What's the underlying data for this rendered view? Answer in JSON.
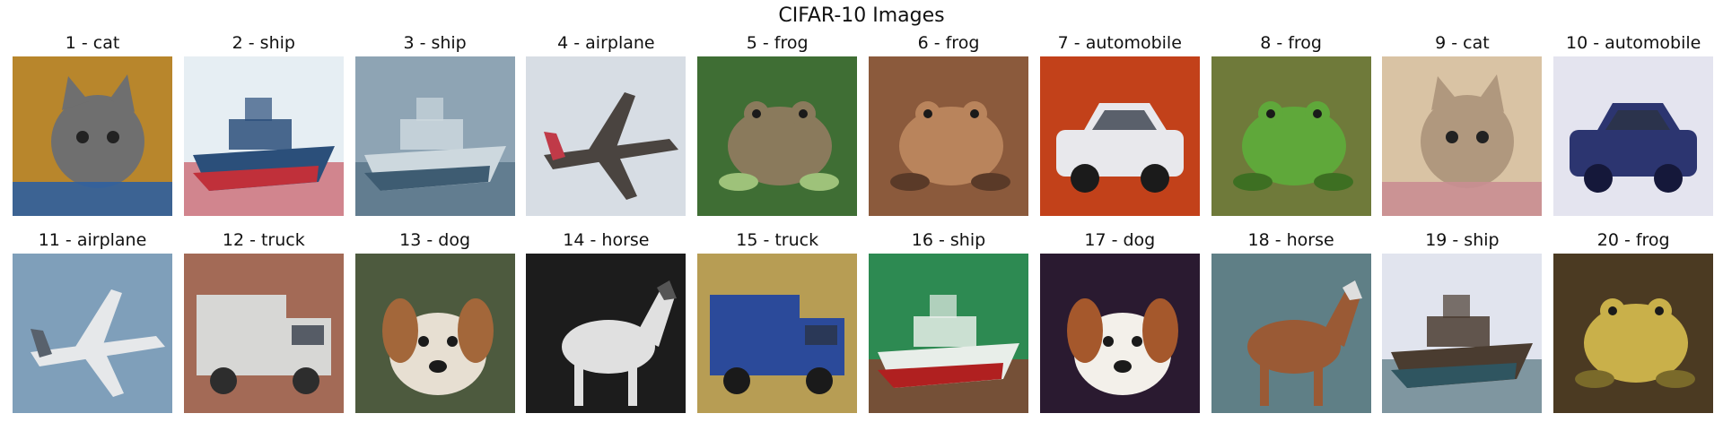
{
  "figure": {
    "title": "CIFAR-10 Images"
  },
  "images": [
    {
      "label": "1 - cat",
      "icon": "cat",
      "bg": "#b8862c",
      "fg": "#6f6f6f",
      "accent": "#2f5f9f"
    },
    {
      "label": "2 - ship",
      "icon": "ship",
      "bg": "#e6eef3",
      "fg": "#2b4f7a",
      "accent": "#c0303a"
    },
    {
      "label": "3 - ship",
      "icon": "ship",
      "bg": "#8ea4b4",
      "fg": "#cdd8de",
      "accent": "#3e5c72"
    },
    {
      "label": "4 - airplane",
      "icon": "airplane",
      "bg": "#d7dde4",
      "fg": "#4a4440",
      "accent": "#c03a48"
    },
    {
      "label": "5 - frog",
      "icon": "frog",
      "bg": "#3f6e34",
      "fg": "#8a7a5c",
      "accent": "#9ec27a"
    },
    {
      "label": "6 - frog",
      "icon": "frog",
      "bg": "#8b5a3c",
      "fg": "#b9845c",
      "accent": "#5a3a28"
    },
    {
      "label": "7 - automobile",
      "icon": "automobile",
      "bg": "#c2411a",
      "fg": "#e8e8ec",
      "accent": "#1b1b1b"
    },
    {
      "label": "8 - frog",
      "icon": "frog",
      "bg": "#6f7a3a",
      "fg": "#5fa83a",
      "accent": "#3d6f22"
    },
    {
      "label": "9 - cat",
      "icon": "cat",
      "bg": "#d9c3a4",
      "fg": "#b0987e",
      "accent": "#c98e92"
    },
    {
      "label": "10 - automobile",
      "icon": "automobile",
      "bg": "#e4e4ef",
      "fg": "#2c3570",
      "accent": "#15183a"
    },
    {
      "label": "11 - airplane",
      "icon": "airplane",
      "bg": "#7f9fba",
      "fg": "#e6e8ea",
      "accent": "#58616c"
    },
    {
      "label": "12 - truck",
      "icon": "truck",
      "bg": "#a36a56",
      "fg": "#d7d7d5",
      "accent": "#2d2d2d"
    },
    {
      "label": "13 - dog",
      "icon": "dog",
      "bg": "#4d5a3e",
      "fg": "#e7dfd2",
      "accent": "#a3673a"
    },
    {
      "label": "14 - horse",
      "icon": "horse",
      "bg": "#1c1c1c",
      "fg": "#e0e0e0",
      "accent": "#555555"
    },
    {
      "label": "15 - truck",
      "icon": "truck",
      "bg": "#b79d54",
      "fg": "#2b4a9a",
      "accent": "#1a1a1a"
    },
    {
      "label": "16 - ship",
      "icon": "ship",
      "bg": "#2d8a52",
      "fg": "#e8eee9",
      "accent": "#b02020"
    },
    {
      "label": "17 - dog",
      "icon": "dog",
      "bg": "#2a1a30",
      "fg": "#f3f0ea",
      "accent": "#a5582c"
    },
    {
      "label": "18 - horse",
      "icon": "horse",
      "bg": "#5f7f86",
      "fg": "#9a5a35",
      "accent": "#dedede"
    },
    {
      "label": "19 - ship",
      "icon": "ship",
      "bg": "#e1e4ee",
      "fg": "#4a3c30",
      "accent": "#2f5560"
    },
    {
      "label": "20 - frog",
      "icon": "frog",
      "bg": "#4b3a22",
      "fg": "#c9b04a",
      "accent": "#7a6a2a"
    }
  ]
}
